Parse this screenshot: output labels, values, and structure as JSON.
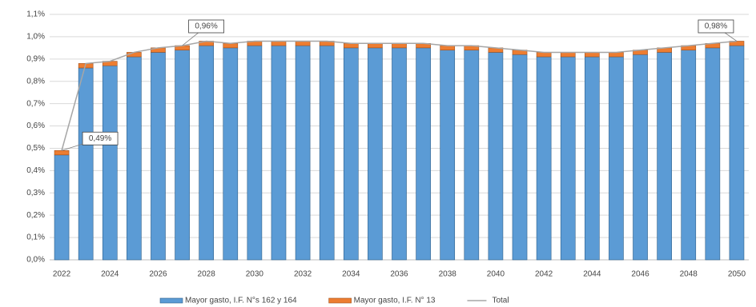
{
  "chart_data": {
    "type": "bar",
    "stacked": true,
    "categories": [
      "2022",
      null,
      "2024",
      null,
      "2026",
      null,
      "2028",
      null,
      "2030",
      null,
      "2032",
      null,
      "2034",
      null,
      "2036",
      null,
      "2038",
      null,
      "2040",
      null,
      "2042",
      null,
      "2044",
      null,
      "2046",
      null,
      "2048",
      null,
      "2050"
    ],
    "series": [
      {
        "name": "Mayor gasto, I.F. N°s 162 y 164",
        "type": "bar",
        "color": "#5b9bd5",
        "values": [
          0.47,
          0.86,
          0.87,
          0.91,
          0.93,
          0.94,
          0.96,
          0.95,
          0.96,
          0.96,
          0.96,
          0.96,
          0.95,
          0.95,
          0.95,
          0.95,
          0.94,
          0.94,
          0.93,
          0.92,
          0.91,
          0.91,
          0.91,
          0.91,
          0.92,
          0.93,
          0.94,
          0.95,
          0.96
        ]
      },
      {
        "name": "Mayor gasto, I.F. N° 13",
        "type": "bar",
        "color": "#ed7d31",
        "values": [
          0.02,
          0.02,
          0.02,
          0.02,
          0.02,
          0.02,
          0.02,
          0.02,
          0.02,
          0.02,
          0.02,
          0.02,
          0.02,
          0.02,
          0.02,
          0.02,
          0.02,
          0.02,
          0.02,
          0.02,
          0.02,
          0.02,
          0.02,
          0.02,
          0.02,
          0.02,
          0.02,
          0.02,
          0.02
        ]
      },
      {
        "name": "Total",
        "type": "line",
        "color": "#a6a6a6",
        "values": [
          0.49,
          0.88,
          0.89,
          0.93,
          0.95,
          0.96,
          0.98,
          0.97,
          0.98,
          0.98,
          0.98,
          0.98,
          0.97,
          0.97,
          0.97,
          0.97,
          0.96,
          0.96,
          0.95,
          0.94,
          0.93,
          0.93,
          0.93,
          0.93,
          0.94,
          0.95,
          0.96,
          0.97,
          0.98
        ],
        "value_labels": [
          "0,49%",
          null,
          null,
          null,
          null,
          "0,96%",
          null,
          null,
          null,
          null,
          null,
          null,
          null,
          null,
          null,
          null,
          null,
          null,
          null,
          null,
          null,
          null,
          null,
          null,
          null,
          null,
          null,
          null,
          "0,98%"
        ]
      }
    ],
    "ylim": [
      0,
      1.1
    ],
    "yticks": [
      {
        "value": 0,
        "label": "0,0%"
      },
      {
        "value": 0.1,
        "label": "0,1%"
      },
      {
        "value": 0.2,
        "label": "0,2%"
      },
      {
        "value": 0.3,
        "label": "0,3%"
      },
      {
        "value": 0.4,
        "label": "0,4%"
      },
      {
        "value": 0.5,
        "label": "0,5%"
      },
      {
        "value": 0.6,
        "label": "0,6%"
      },
      {
        "value": 0.7,
        "label": "0,7%"
      },
      {
        "value": 0.8,
        "label": "0,8%"
      },
      {
        "value": 0.9,
        "label": "0,9%"
      },
      {
        "value": 1.0,
        "label": "1,0%"
      },
      {
        "value": 1.1,
        "label": "1,1%"
      }
    ],
    "grid": true,
    "legend": "bottom"
  }
}
